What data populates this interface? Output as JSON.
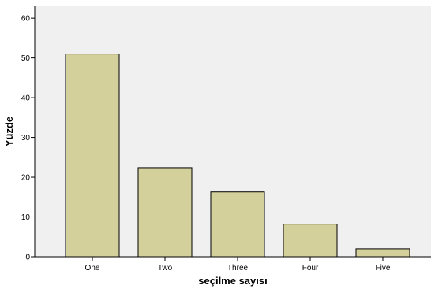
{
  "chart_data": {
    "type": "bar",
    "xlabel": "seçilme sayısı",
    "ylabel": "Yüzde",
    "categories": [
      "One",
      "Two",
      "Three",
      "Four",
      "Five"
    ],
    "values": [
      51.0,
      22.4,
      16.3,
      8.2,
      2.0
    ],
    "ylim": [
      0,
      63
    ],
    "yticks": [
      0,
      10,
      20,
      30,
      40,
      50,
      60
    ],
    "grid": false,
    "legend": "none",
    "colors": {
      "bar_fill": "#d4d09b",
      "bar_stroke": "#000000",
      "plot_background": "#f0f0f0",
      "axis": "#000000"
    }
  }
}
